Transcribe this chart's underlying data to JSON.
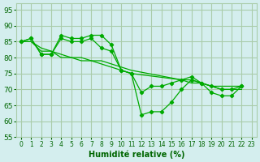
{
  "background_color": "#d4eeee",
  "grid_color": "#aaccaa",
  "line_color": "#00aa00",
  "xlabel": "Humidité relative (%)",
  "xlabel_color": "#006600",
  "tick_color": "#006600",
  "ylim": [
    55,
    97
  ],
  "xlim": [
    -0.5,
    23.5
  ],
  "yticks": [
    55,
    60,
    65,
    70,
    75,
    80,
    85,
    90,
    95
  ],
  "xticks": [
    0,
    1,
    2,
    3,
    4,
    5,
    6,
    7,
    8,
    9,
    10,
    11,
    12,
    13,
    14,
    15,
    16,
    17,
    18,
    19,
    20,
    21,
    22,
    23
  ],
  "series": [
    {
      "x": [
        0,
        1,
        2,
        3,
        4,
        5,
        6,
        7,
        8,
        9,
        10,
        11,
        12,
        13,
        14,
        15,
        16,
        17,
        18,
        19,
        20,
        21,
        22
      ],
      "y": [
        85,
        86,
        81,
        81,
        87,
        86,
        86,
        87,
        87,
        84,
        76,
        75,
        62,
        63,
        63,
        66,
        70,
        73,
        72,
        69,
        68,
        68,
        71
      ]
    },
    {
      "x": [
        0,
        1,
        2,
        3,
        4,
        5,
        6,
        7,
        8,
        9,
        10,
        11,
        12,
        13,
        14,
        15,
        16,
        17,
        18,
        19,
        20,
        21,
        22
      ],
      "y": [
        85,
        86,
        81,
        81,
        86,
        85,
        85,
        86,
        83,
        82,
        76,
        75,
        69,
        71,
        71,
        72,
        73,
        74,
        72,
        71,
        70,
        70,
        71
      ]
    },
    {
      "x": [
        0,
        1,
        2,
        3,
        4,
        5,
        6,
        7,
        8,
        9,
        10,
        11,
        16,
        17,
        18,
        19,
        20,
        21,
        22
      ],
      "y": [
        85,
        85,
        83,
        82,
        81,
        80,
        80,
        79,
        79,
        78,
        77,
        76,
        73,
        73,
        72,
        71,
        71,
        71,
        71
      ]
    },
    {
      "x": [
        0,
        1,
        2,
        3,
        4,
        5,
        6,
        7,
        8,
        9,
        10,
        11,
        16,
        17,
        18,
        19,
        20,
        21,
        22
      ],
      "y": [
        85,
        85,
        82,
        82,
        80,
        80,
        79,
        79,
        78,
        77,
        76,
        75,
        73,
        72,
        72,
        71,
        70,
        70,
        70
      ]
    }
  ]
}
